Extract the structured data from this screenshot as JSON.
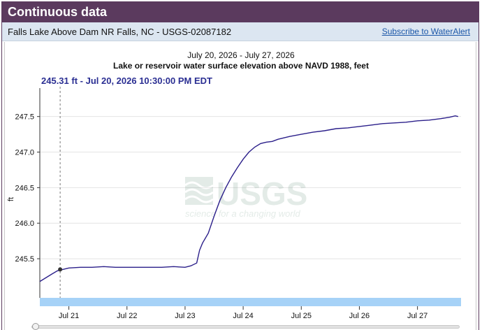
{
  "header": {
    "title": "Continuous data"
  },
  "site": {
    "name": "Falls Lake Above Dam NR Falls, NC - USGS-02087182",
    "subscribe_label": "Subscribe to WaterAlert"
  },
  "chart": {
    "date_range": "July 20, 2026 - July 27, 2026",
    "subtitle": "Lake or reservoir water surface elevation above NAVD 1988, feet",
    "tooltip": "245.31 ft - Jul 20, 2026 10:30:00 PM EDT",
    "y_unit": "ft",
    "watermark_logo": "USGS",
    "watermark_tagline": "science for a changing world"
  },
  "colors": {
    "header_bg": "#5b3a5e",
    "line": "#2b1f8a",
    "brush": "#a6d2f7"
  },
  "chart_data": {
    "type": "line",
    "title": "Lake or reservoir water surface elevation above NAVD 1988, feet",
    "ylabel": "ft",
    "ylim": [
      244.95,
      247.9
    ],
    "xlim": [
      20.5,
      27.75
    ],
    "x_tick_labels": [
      "Jul 21",
      "Jul 22",
      "Jul 23",
      "Jul 24",
      "Jul 25",
      "Jul 26",
      "Jul 27"
    ],
    "x_tick_values": [
      21,
      22,
      23,
      24,
      25,
      26,
      27
    ],
    "y_ticks": [
      245.5,
      246.0,
      246.5,
      247.0,
      247.5
    ],
    "y_tick_labels": [
      "245.5",
      "246.0",
      "246.5",
      "247.0",
      "247.5"
    ],
    "grid": true,
    "cursor_x": 20.85,
    "series": [
      {
        "x": [
          20.5,
          20.6,
          20.7,
          20.8,
          20.9,
          21.0,
          21.2,
          21.4,
          21.6,
          21.8,
          22.0,
          22.2,
          22.4,
          22.6,
          22.8,
          23.0,
          23.1,
          23.2,
          23.25,
          23.3,
          23.4,
          23.5,
          23.6,
          23.7,
          23.8,
          23.9,
          24.0,
          24.1,
          24.2,
          24.3,
          24.4,
          24.5,
          24.6,
          24.8,
          25.0,
          25.2,
          25.4,
          25.6,
          25.8,
          26.0,
          26.2,
          26.4,
          26.6,
          26.8,
          27.0,
          27.2,
          27.4,
          27.55,
          27.65,
          27.7
        ],
        "y": [
          245.18,
          245.23,
          245.28,
          245.33,
          245.35,
          245.37,
          245.38,
          245.38,
          245.39,
          245.38,
          245.38,
          245.38,
          245.38,
          245.38,
          245.39,
          245.38,
          245.4,
          245.44,
          245.62,
          245.72,
          245.86,
          246.1,
          246.32,
          246.5,
          246.65,
          246.78,
          246.9,
          247.0,
          247.07,
          247.12,
          247.14,
          247.15,
          247.18,
          247.22,
          247.25,
          247.28,
          247.3,
          247.33,
          247.34,
          247.36,
          247.38,
          247.4,
          247.41,
          247.42,
          247.44,
          247.45,
          247.47,
          247.49,
          247.51,
          247.5
        ]
      }
    ]
  }
}
